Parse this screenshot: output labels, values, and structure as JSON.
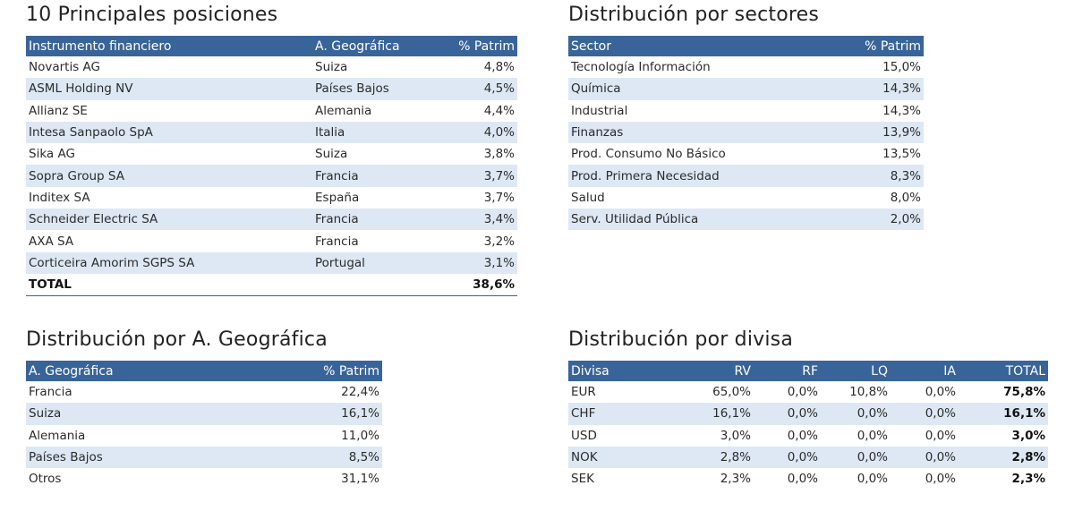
{
  "top_positions": {
    "title": "10 Principales posiciones",
    "headers": [
      "Instrumento financiero",
      "A. Geográfica",
      "% Patrim"
    ],
    "rows": [
      [
        "Novartis AG",
        "Suiza",
        "4,8%"
      ],
      [
        "ASML Holding NV",
        "Países Bajos",
        "4,5%"
      ],
      [
        "Allianz SE",
        "Alemania",
        "4,4%"
      ],
      [
        "Intesa Sanpaolo SpA",
        "Italia",
        "4,0%"
      ],
      [
        "Sika AG",
        "Suiza",
        "3,8%"
      ],
      [
        "Sopra Group SA",
        "Francia",
        "3,7%"
      ],
      [
        "Inditex SA",
        "España",
        "3,7%"
      ],
      [
        "Schneider Electric SA",
        "Francia",
        "3,4%"
      ],
      [
        "AXA SA",
        "Francia",
        "3,2%"
      ],
      [
        "Corticeira Amorim SGPS SA",
        "Portugal",
        "3,1%"
      ]
    ],
    "total": [
      "TOTAL",
      "",
      "38,6%"
    ]
  },
  "sectors": {
    "title": "Distribución por sectores",
    "headers": [
      "Sector",
      "% Patrim"
    ],
    "rows": [
      [
        "Tecnología Información",
        "15,0%"
      ],
      [
        "Química",
        "14,3%"
      ],
      [
        "Industrial",
        "14,3%"
      ],
      [
        "Finanzas",
        "13,9%"
      ],
      [
        "Prod. Consumo No Básico",
        "13,5%"
      ],
      [
        "Prod. Primera Necesidad",
        "8,3%"
      ],
      [
        "Salud",
        "8,0%"
      ],
      [
        "Serv. Utilidad Pública",
        "2,0%"
      ]
    ]
  },
  "geography": {
    "title": "Distribución por A. Geográfica",
    "headers": [
      "A. Geográfica",
      "% Patrim"
    ],
    "rows": [
      [
        "Francia",
        "22,4%"
      ],
      [
        "Suiza",
        "16,1%"
      ],
      [
        "Alemania",
        "11,0%"
      ],
      [
        "Países Bajos",
        "8,5%"
      ],
      [
        "Otros",
        "31,1%"
      ]
    ]
  },
  "currency": {
    "title": "Distribución por divisa",
    "headers": [
      "Divisa",
      "RV",
      "RF",
      "LQ",
      "IA",
      "TOTAL"
    ],
    "rows": [
      [
        "EUR",
        "65,0%",
        "0,0%",
        "10,8%",
        "0,0%",
        "75,8%"
      ],
      [
        "CHF",
        "16,1%",
        "0,0%",
        "0,0%",
        "0,0%",
        "16,1%"
      ],
      [
        "USD",
        "3,0%",
        "0,0%",
        "0,0%",
        "0,0%",
        "3,0%"
      ],
      [
        "NOK",
        "2,8%",
        "0,0%",
        "0,0%",
        "0,0%",
        "2,8%"
      ],
      [
        "SEK",
        "2,3%",
        "0,0%",
        "0,0%",
        "0,0%",
        "2,3%"
      ]
    ]
  }
}
